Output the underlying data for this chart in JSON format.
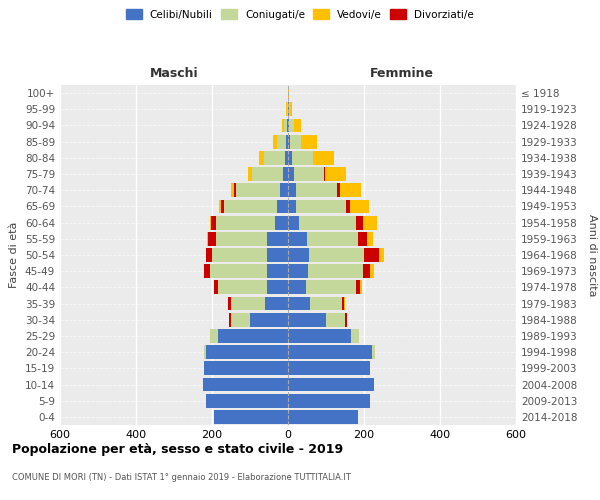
{
  "age_groups": [
    "0-4",
    "5-9",
    "10-14",
    "15-19",
    "20-24",
    "25-29",
    "30-34",
    "35-39",
    "40-44",
    "45-49",
    "50-54",
    "55-59",
    "60-64",
    "65-69",
    "70-74",
    "75-79",
    "80-84",
    "85-89",
    "90-94",
    "95-99",
    "100+"
  ],
  "birth_years": [
    "2014-2018",
    "2009-2013",
    "2004-2008",
    "1999-2003",
    "1994-1998",
    "1989-1993",
    "1984-1988",
    "1979-1983",
    "1974-1978",
    "1969-1973",
    "1964-1968",
    "1959-1963",
    "1954-1958",
    "1949-1953",
    "1944-1948",
    "1939-1943",
    "1934-1938",
    "1929-1933",
    "1924-1928",
    "1919-1923",
    "≤ 1918"
  ],
  "males": {
    "celibi": [
      195,
      215,
      225,
      220,
      215,
      185,
      100,
      60,
      55,
      55,
      55,
      55,
      35,
      28,
      22,
      14,
      8,
      5,
      2,
      1,
      0
    ],
    "coniugati": [
      0,
      0,
      0,
      2,
      5,
      20,
      50,
      90,
      130,
      150,
      145,
      135,
      155,
      140,
      115,
      80,
      55,
      25,
      8,
      2,
      0
    ],
    "divorziati": [
      0,
      0,
      0,
      0,
      0,
      0,
      5,
      8,
      10,
      15,
      15,
      20,
      12,
      8,
      5,
      2,
      1,
      0,
      0,
      0,
      0
    ],
    "vedovi": [
      0,
      0,
      0,
      0,
      0,
      0,
      0,
      1,
      1,
      2,
      2,
      2,
      4,
      5,
      8,
      10,
      12,
      10,
      5,
      2,
      0
    ]
  },
  "females": {
    "nubili": [
      185,
      215,
      225,
      215,
      220,
      165,
      100,
      58,
      48,
      52,
      55,
      50,
      30,
      22,
      20,
      16,
      10,
      6,
      3,
      2,
      0
    ],
    "coniugate": [
      0,
      0,
      0,
      2,
      8,
      22,
      50,
      85,
      130,
      145,
      145,
      135,
      150,
      130,
      110,
      78,
      55,
      28,
      12,
      3,
      0
    ],
    "divorziate": [
      0,
      0,
      0,
      0,
      0,
      0,
      5,
      5,
      12,
      20,
      40,
      22,
      18,
      12,
      8,
      4,
      2,
      1,
      0,
      0,
      0
    ],
    "vedove": [
      0,
      0,
      0,
      0,
      0,
      0,
      1,
      2,
      4,
      8,
      12,
      18,
      35,
      50,
      55,
      55,
      55,
      40,
      18,
      5,
      2
    ]
  },
  "colors": {
    "celibi": "#4472c4",
    "coniugati": "#c5d89b",
    "vedovi": "#ffc000",
    "divorziati": "#cc0000"
  },
  "title": "Popolazione per età, sesso e stato civile - 2019",
  "subtitle": "COMUNE DI MORI (TN) - Dati ISTAT 1° gennaio 2019 - Elaborazione TUTTITALIA.IT",
  "xlabel_left": "Maschi",
  "xlabel_right": "Femmine",
  "ylabel_left": "Fasce di età",
  "ylabel_right": "Anni di nascita",
  "xlim": 600,
  "legend_labels": [
    "Celibi/Nubili",
    "Coniugati/e",
    "Vedovi/e",
    "Divorziati/e"
  ],
  "background_color": "#ebebeb",
  "bar_height": 0.85
}
